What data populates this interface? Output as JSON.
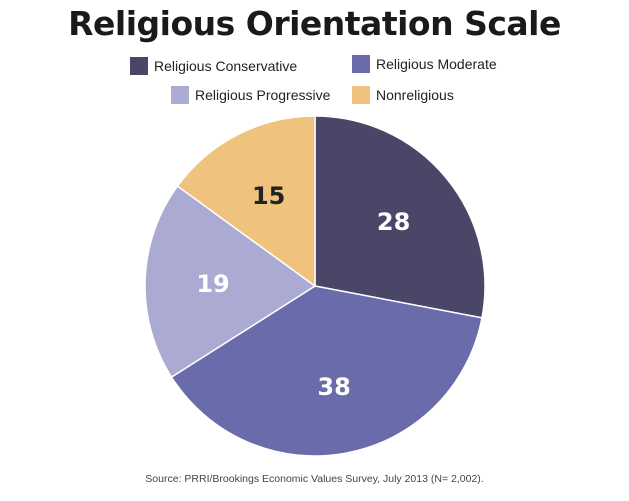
{
  "chart_data": {
    "type": "pie",
    "title": "Religious Orientation Scale",
    "categories": [
      "Religious Conservative",
      "Religious Moderate",
      "Religious Progressive",
      "Nonreligious"
    ],
    "values": [
      28,
      38,
      19,
      15
    ],
    "colors": [
      "#4a4668",
      "#6a6bab",
      "#abaad3",
      "#efc27e"
    ],
    "label_colors": [
      "#ffffff",
      "#ffffff",
      "#ffffff",
      "#222222"
    ],
    "legend_placement": "top",
    "source": "Source: PRRI/Brookings Economic Values Survey, July 2013 (N= 2,002)."
  }
}
